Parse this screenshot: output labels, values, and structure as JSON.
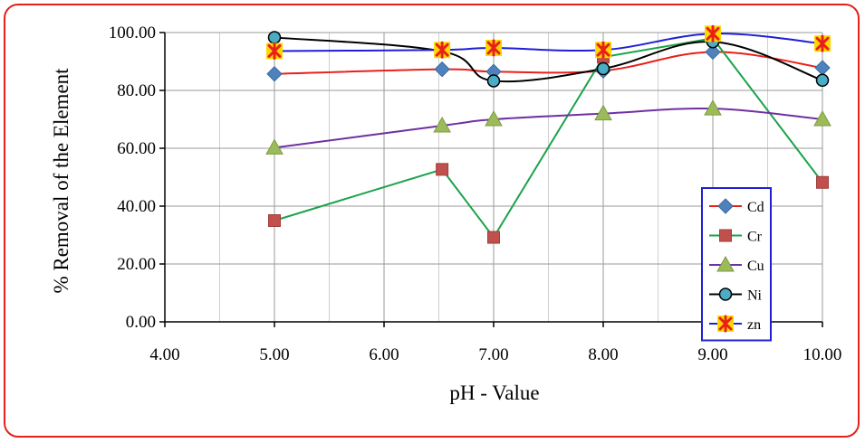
{
  "chart_data": {
    "type": "line",
    "xlabel": "pH - Value",
    "ylabel": "% Removal of the Element",
    "xlim": [
      4.0,
      10.0
    ],
    "ylim": [
      0.0,
      100.0
    ],
    "xticks": [
      "4.00",
      "5.00",
      "6.00",
      "7.00",
      "8.00",
      "9.00",
      "10.00"
    ],
    "yticks": [
      "0.00",
      "20.00",
      "40.00",
      "60.00",
      "80.00",
      "100.00"
    ],
    "grid": "major and minor vertical, major horizontal",
    "legend_position": "right",
    "x": [
      5.0,
      6.53,
      7.0,
      8.0,
      9.0,
      10.0
    ],
    "series": [
      {
        "name": "Cd",
        "color": "#e8201a",
        "marker": "diamond",
        "marker_color": "#4f81bd",
        "values": [
          85.7,
          87.3,
          86.5,
          86.8,
          93.3,
          87.8
        ]
      },
      {
        "name": "Cr",
        "color": "#1aa34a",
        "marker": "square",
        "marker_color": "#c0504d",
        "values": [
          35.0,
          52.7,
          29.2,
          91.5,
          98.0,
          48.2
        ]
      },
      {
        "name": "Cu",
        "color": "#7030a0",
        "marker": "triangle",
        "marker_color": "#9bbb59",
        "values": [
          60.2,
          67.8,
          70.0,
          72.0,
          73.7,
          70.0
        ]
      },
      {
        "name": "Ni",
        "color": "#000000",
        "marker": "circle",
        "marker_color": "#4bacc6",
        "values": [
          98.3,
          93.5,
          83.3,
          87.5,
          96.8,
          83.5
        ]
      },
      {
        "name": "zn",
        "color": "#1f1fd6",
        "marker": "star",
        "marker_color": "#ffd700",
        "marker_edge": "#e8201a",
        "values": [
          93.6,
          94.0,
          94.7,
          94.0,
          99.6,
          96.2
        ]
      }
    ]
  }
}
